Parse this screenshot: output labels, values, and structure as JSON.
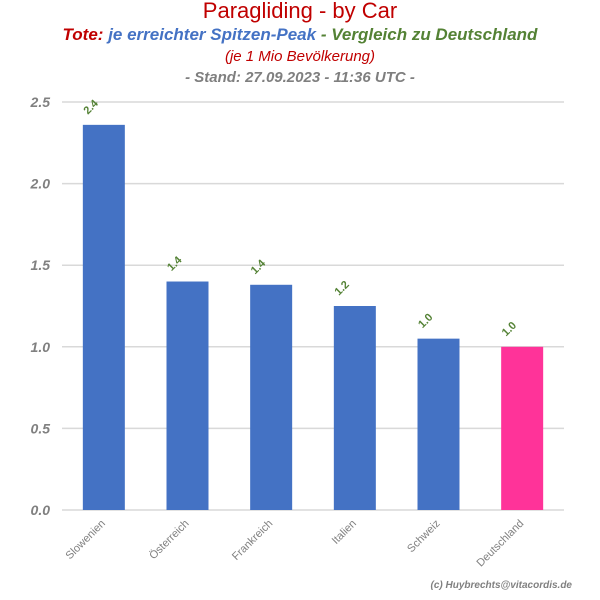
{
  "header": {
    "title": "Paragliding - by Car",
    "subtitle_prefix": "Tote:",
    "subtitle_main": "je erreichter Spitzen-Peak",
    "subtitle_compare": "- Vergleich zu Deutschland",
    "note": "(je 1 Mio Bevölkerung)",
    "stand": "- Stand: 27.09.2023 - 11:36 UTC -"
  },
  "footer": {
    "credit": "(c) Huybrechts@vitacordis.de"
  },
  "chart_data": {
    "type": "bar",
    "title": "Paragliding - by Car",
    "xlabel": "",
    "ylabel": "",
    "categories": [
      "Slowenien",
      "Österreich",
      "Frankreich",
      "Italien",
      "Schweiz",
      "Deutschland"
    ],
    "values": [
      2.36,
      1.4,
      1.38,
      1.25,
      1.05,
      1.0
    ],
    "data_labels": [
      "2.4",
      "1.4",
      "1.4",
      "1.2",
      "1.0",
      "1.0"
    ],
    "yticks": [
      "0.0",
      "0.5",
      "1.0",
      "1.5",
      "2.0",
      "2.5"
    ],
    "ylim": [
      0,
      2.5
    ],
    "grid": true,
    "legend": "none",
    "colors": {
      "bar": "#4472c4",
      "highlight": "#ff3399",
      "data_label": "#548235",
      "tick": "#808080",
      "grid": "#d9d9d9"
    },
    "highlight_index": 5
  }
}
